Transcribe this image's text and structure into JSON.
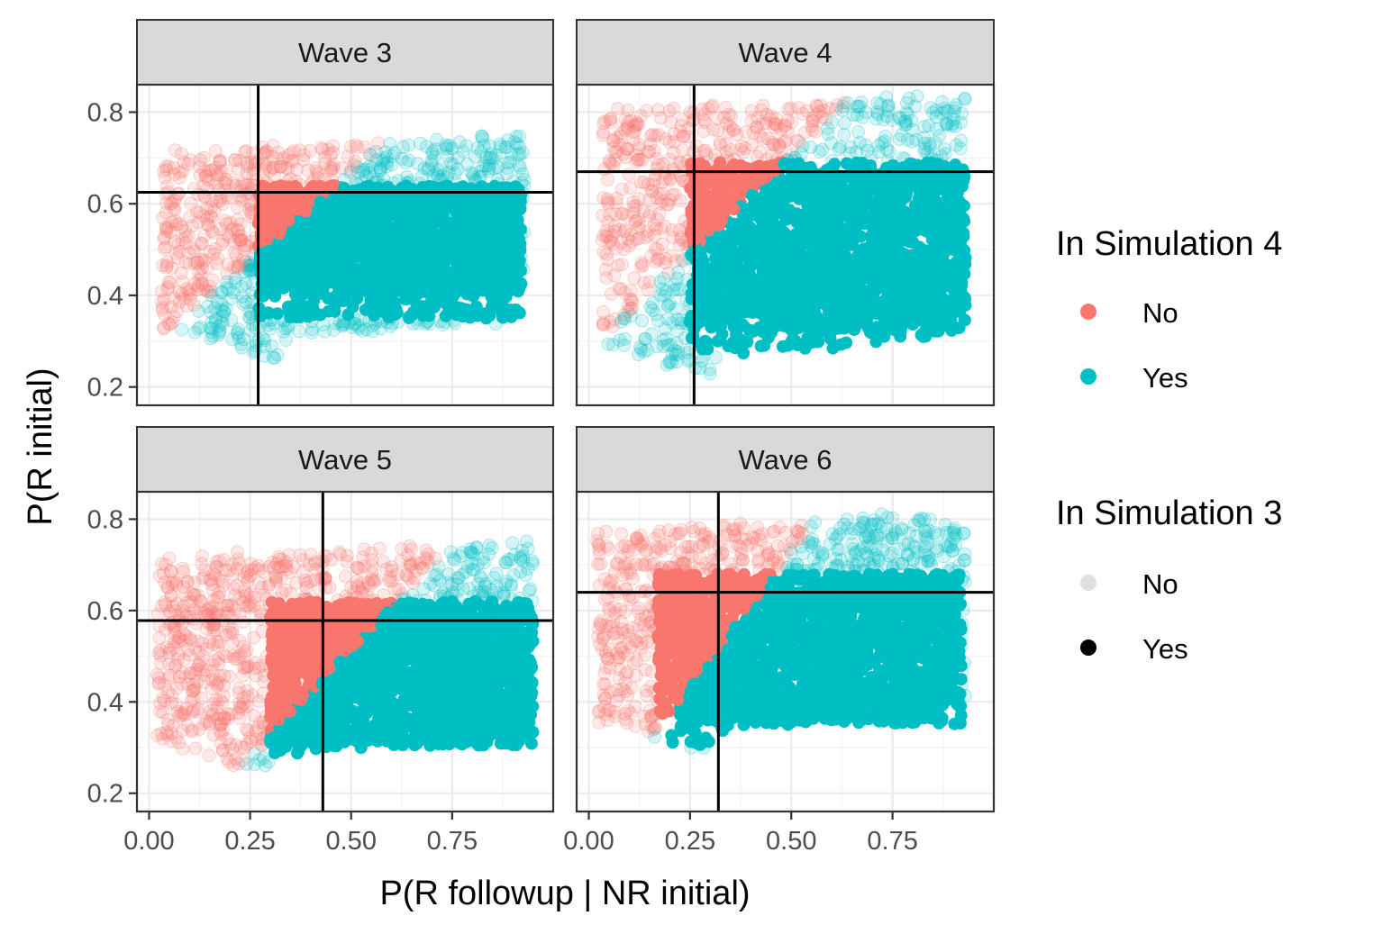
{
  "chart_data": {
    "type": "scatter",
    "xlabel": "P(R followup | NR initial)",
    "ylabel": "P(R initial)",
    "xlim": [
      -0.03,
      1.0
    ],
    "ylim": [
      0.16,
      0.86
    ],
    "x_ticks": [
      {
        "value": 0.0,
        "label": "0.00"
      },
      {
        "value": 0.25,
        "label": "0.25"
      },
      {
        "value": 0.5,
        "label": "0.50"
      },
      {
        "value": 0.75,
        "label": "0.75"
      }
    ],
    "y_ticks": [
      {
        "value": 0.2,
        "label": "0.2"
      },
      {
        "value": 0.4,
        "label": "0.4"
      },
      {
        "value": 0.6,
        "label": "0.6"
      },
      {
        "value": 0.8,
        "label": "0.8"
      }
    ],
    "grid": true,
    "colors": {
      "no": "#F8766D",
      "yes": "#00BFC4"
    },
    "panels": [
      {
        "label": "Wave 3",
        "vline": 0.27,
        "hline": 0.625,
        "boundary": {
          "intercept": 0.28,
          "slope": 0.78
        },
        "sim3_box": {
          "x": [
            0.27,
            0.92
          ],
          "y": [
            0.35,
            0.64
          ]
        },
        "cloud": {
          "x": [
            0.03,
            0.93
          ],
          "y_low": 0.24,
          "y_high": 0.74,
          "x_low_left": 0.32
        }
      },
      {
        "label": "Wave 4",
        "vline": 0.26,
        "hline": 0.67,
        "boundary": {
          "intercept": 0.28,
          "slope": 0.85
        },
        "sim3_box": {
          "x": [
            0.25,
            0.93
          ],
          "y": [
            0.27,
            0.69
          ]
        },
        "cloud": {
          "x": [
            0.03,
            0.93
          ],
          "y_low": 0.2,
          "y_high": 0.83,
          "x_low_left": 0.3
        }
      },
      {
        "label": "Wave 5",
        "vline": 0.43,
        "hline": 0.578,
        "boundary": {
          "intercept": 0.04,
          "slope": 0.95
        },
        "sim3_box": {
          "x": [
            0.3,
            0.95
          ],
          "y": [
            0.25,
            0.62
          ]
        },
        "cloud": {
          "x": [
            0.02,
            0.95
          ],
          "y_low": 0.22,
          "y_high": 0.74,
          "x_low_left": 0.3
        }
      },
      {
        "label": "Wave 6",
        "vline": 0.32,
        "hline": 0.64,
        "boundary": {
          "intercept": 0.13,
          "slope": 1.2
        },
        "sim3_box": {
          "x": [
            0.17,
            0.92
          ],
          "y": [
            0.3,
            0.68
          ]
        },
        "cloud": {
          "x": [
            0.02,
            0.93
          ],
          "y_low": 0.27,
          "y_high": 0.8,
          "x_low_left": 0.3
        }
      }
    ],
    "legends": [
      {
        "title": "In Simulation 4",
        "entries": [
          {
            "label": "No",
            "color": "#F8766D",
            "alpha": 1.0
          },
          {
            "label": "Yes",
            "color": "#00BFC4",
            "alpha": 1.0
          }
        ]
      },
      {
        "title": "In Simulation 3",
        "entries": [
          {
            "label": "No",
            "color": "#000000",
            "alpha": 0.12
          },
          {
            "label": "Yes",
            "color": "#000000",
            "alpha": 1.0
          }
        ]
      }
    ]
  }
}
